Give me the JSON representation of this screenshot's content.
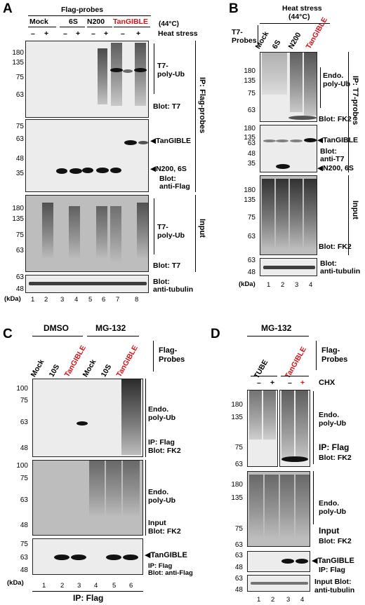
{
  "A": {
    "letter": "A",
    "probes_title": "Flag-probes",
    "groups": [
      "Mock",
      "6S",
      "N200",
      "TanGIBLE"
    ],
    "temp": "(44°C)",
    "heat_label": "Heat stress",
    "signs": [
      "–",
      "+",
      "–",
      "+",
      "–",
      "+",
      "–",
      "+"
    ],
    "blot1": {
      "label1": "T7-",
      "label2": "poly-Ub",
      "blot": "Blot: T7",
      "mw": [
        "180",
        "135",
        "75",
        "63"
      ]
    },
    "blot2": {
      "arrow1": "◀TanGIBLE",
      "arrow2": "◀N200, 6S",
      "blot1": "Blot:",
      "blot2": "anti-Flag",
      "mw": [
        "75",
        "63",
        "48",
        "35"
      ]
    },
    "blot3": {
      "label1": "T7-",
      "label2": "poly-Ub",
      "blot": "Blot: T7",
      "mw": [
        "180",
        "135",
        "75",
        "63"
      ]
    },
    "blot4": {
      "blot1": "Blot:",
      "blot2": "anti-tubulin",
      "mw": [
        "63",
        "48"
      ]
    },
    "side1": "IP: Flag-probes",
    "side2": "Input",
    "kda": "(kDa)",
    "lanes": [
      "1",
      "2",
      "3",
      "4",
      "5",
      "6",
      "7",
      "8"
    ]
  },
  "B": {
    "letter": "B",
    "title1": "Heat stress",
    "title2": "(44°C)",
    "probes1": "T7-",
    "probes2": "Probes",
    "groups": [
      "Mock",
      "6S",
      "N200",
      "TanGIBLE"
    ],
    "blot1": {
      "label1": "Endo.",
      "label2": "poly-Ub",
      "blot": "Blot: FK2",
      "mw": [
        "180",
        "135",
        "75",
        "63"
      ]
    },
    "blot2": {
      "arrow1": "◀TanGIBLE",
      "blot1": "Blot:",
      "blot2": "anti-T7",
      "arrow2": "◀N200, 6S",
      "mw": [
        "180",
        "135",
        "63",
        "48",
        "35"
      ]
    },
    "blot3": {
      "blot": "Blot: FK2",
      "mw": [
        "180",
        "135",
        "75",
        "63"
      ]
    },
    "blot4": {
      "blot1": "Blot:",
      "blot2": "anti-tubulin",
      "mw": [
        "63",
        "48"
      ]
    },
    "side1": "IP: T7-probes",
    "side2": "Input",
    "kda": "(kDa)",
    "lanes": [
      "1",
      "2",
      "3",
      "4"
    ]
  },
  "C": {
    "letter": "C",
    "dmso": "DMSO",
    "mg": "MG-132",
    "lane_labels": [
      "Mock",
      "10S",
      "TanGIBLE",
      "Mock",
      "10S",
      "TanGIBLE"
    ],
    "flag1": "Flag-",
    "flag2": "Probes",
    "blot1": {
      "label1": "Endo.",
      "label2": "poly-Ub",
      "ip": "IP: Flag",
      "blot": "Blot: FK2",
      "mw": [
        "100",
        "75",
        "63",
        "48"
      ]
    },
    "blot2": {
      "label1": "Endo.",
      "label2": "poly-Ub",
      "input": "Input",
      "blot": "Blot: FK2",
      "mw": [
        "100",
        "75",
        "63",
        "48"
      ]
    },
    "blot3": {
      "arrow": "◀TanGIBLE",
      "ip": "IP: Flag",
      "blot": "Blot: anti-Flag",
      "mw": [
        "75",
        "63",
        "48"
      ]
    },
    "kda": "(kDa)",
    "lanes": [
      "1",
      "2",
      "3",
      "4",
      "5",
      "6"
    ],
    "footer": "IP: Flag"
  },
  "D": {
    "letter": "D",
    "mg": "MG-132",
    "lane_labels": [
      "TUBE",
      "TanGIBLE"
    ],
    "flag1": "Flag-",
    "flag2": "Probes",
    "chx": "CHX",
    "signs": [
      "–",
      "+",
      "–",
      "+"
    ],
    "blot1": {
      "label1": "Endo.",
      "label2": "poly-Ub",
      "ip": "IP: Flag",
      "blot": "Blot: FK2",
      "mw": [
        "180",
        "135",
        "75",
        "63"
      ]
    },
    "blot2": {
      "label1": "Endo.",
      "label2": "poly-Ub",
      "input": "Input",
      "blot": "Blot: FK2",
      "mw": [
        "180",
        "135",
        "75",
        "63"
      ]
    },
    "blot3": {
      "arrow": "◀TanGIBLE",
      "ip": "IP: Flag",
      "mw": [
        "63",
        "48"
      ]
    },
    "blot4": {
      "input": "Input Blot:",
      "blot": "anti-tubulin",
      "mw": [
        "63",
        "48"
      ]
    },
    "lanes": [
      "1",
      "2",
      "3",
      "4"
    ]
  }
}
